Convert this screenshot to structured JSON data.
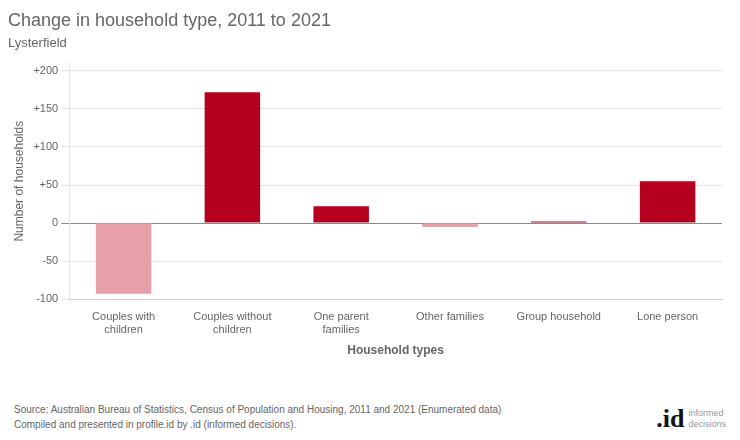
{
  "chart_data": {
    "type": "bar",
    "title": "Change in household type, 2011 to 2021",
    "subtitle": "Lysterfield",
    "categories": [
      "Couples with\nchildren",
      "Couples without\nchildren",
      "One parent\nfamilies",
      "Other families",
      "Group household",
      "Lone person"
    ],
    "values": [
      -93,
      172,
      22,
      -5,
      2,
      55
    ],
    "colors": [
      "#e8a0a8",
      "#b5001f",
      "#b5001f",
      "#e8a0a8",
      "#b5001f",
      "#b5001f"
    ],
    "xlabel": "Household types",
    "ylabel": "Number of households",
    "ylim": [
      -100,
      210
    ],
    "yticks": [
      -100,
      {
        "value": -50,
        "label": "-50"
      },
      0,
      {
        "value": 50,
        "label": "+50"
      },
      {
        "value": 100,
        "label": "+100"
      },
      {
        "value": 150,
        "label": "+150"
      },
      {
        "value": 200,
        "label": "+200"
      }
    ],
    "grid": true,
    "annotations": [
      "Source: Australian Bureau of Statistics, Census of Population and Housing, 2011 and 2021 (Enumerated data)\nCompiled and presented in profile.id by .id (informed decisions).",
      ".id",
      "informed\ndecisions"
    ]
  }
}
